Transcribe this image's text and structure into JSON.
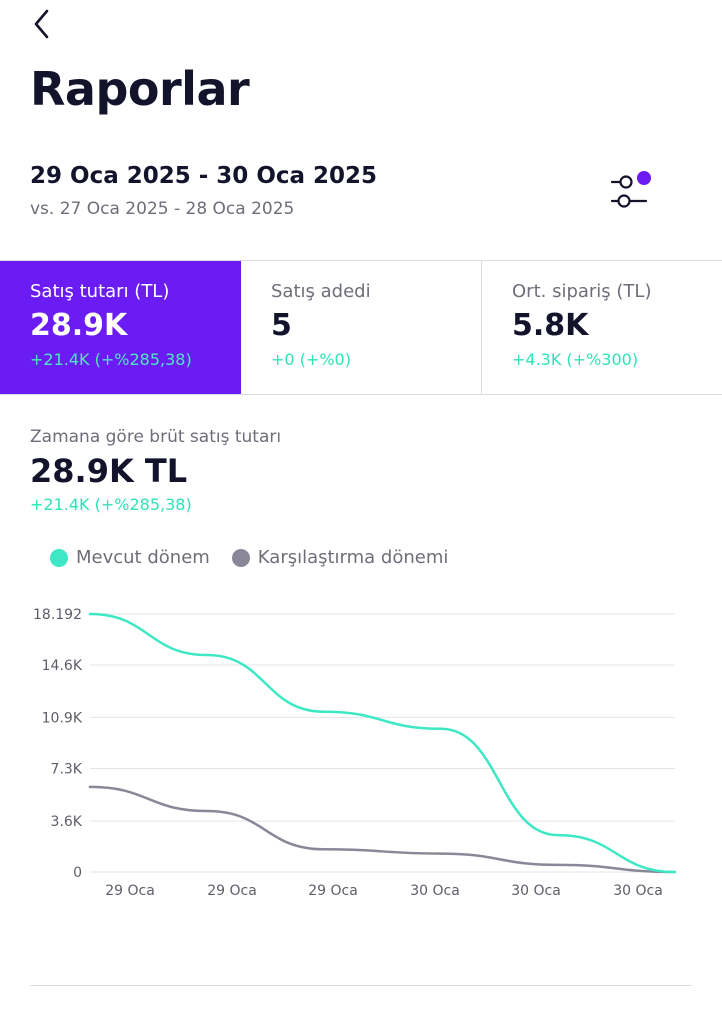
{
  "header": {
    "back_icon": "chevron-left-icon",
    "title": "Raporlar"
  },
  "date_filter": {
    "range": "29 Oca 2025 - 30 Oca 2025",
    "compare": "vs. 27 Oca 2025 - 28 Oca 2025",
    "filter_icon": "sliders-icon",
    "indicator_color": "#6b1cf5"
  },
  "metrics": [
    {
      "label": "Satış tutarı (TL)",
      "value": "28.9K",
      "delta": "+21.4K (+%285,38)",
      "active": true
    },
    {
      "label": "Satış adedi",
      "value": "5",
      "delta": "+0 (+%0)",
      "active": false
    },
    {
      "label": "Ort. sipariş (TL)",
      "value": "5.8K",
      "delta": "+4.3K (+%300)",
      "active": false
    }
  ],
  "section": {
    "label": "Zamana göre brüt satış tutarı",
    "value": "28.9K TL",
    "delta": "+21.4K (+%285,38)"
  },
  "colors": {
    "accent": "#6b1cf5",
    "positive": "#2ee3b8",
    "current_series": "#3ee8c4",
    "compare_series": "#8a8898"
  },
  "chart_data": {
    "type": "line",
    "legend": [
      {
        "name": "Mevcut dönem",
        "color": "#3ee8c4"
      },
      {
        "name": "Karşılaştırma dönemi",
        "color": "#8a8898"
      }
    ],
    "y_ticks": [
      "18.192",
      "14.6K",
      "10.9K",
      "7.3K",
      "3.6K",
      "0"
    ],
    "y_tick_values": [
      18192,
      14600,
      10900,
      7300,
      3600,
      0
    ],
    "ylim": [
      0,
      18192
    ],
    "x_ticks": [
      "29 Oca",
      "29 Oca",
      "29 Oca",
      "30 Oca",
      "30 Oca",
      "30 Oca"
    ],
    "series": [
      {
        "name": "Mevcut dönem",
        "values": [
          18192,
          15300,
          11300,
          10100,
          2600,
          0
        ]
      },
      {
        "name": "Karşılaştırma dönemi",
        "values": [
          6000,
          4300,
          1600,
          1300,
          500,
          0
        ]
      }
    ],
    "grid": true
  }
}
